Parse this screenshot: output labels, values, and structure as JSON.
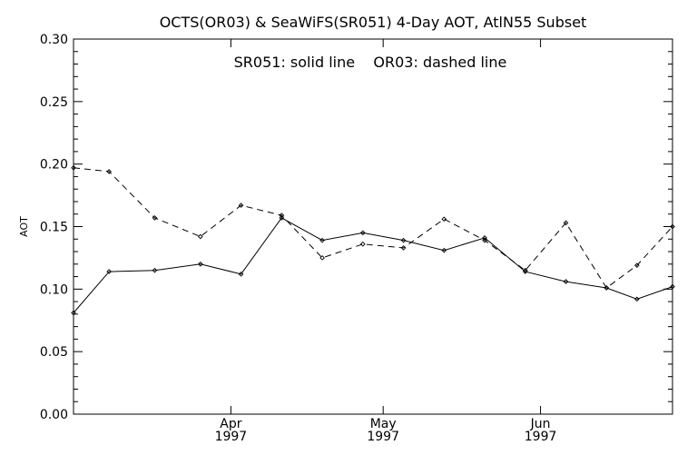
{
  "chart_data": {
    "type": "line",
    "title": "OCTS(OR03) & SeaWiFS(SR051) 4-Day AOT, AtlN55 Subset",
    "annotation": "SR051: solid line    OR03: dashed line",
    "xlabel": "",
    "ylabel": "AOT",
    "ylim": [
      0.0,
      0.3
    ],
    "yticks": [
      0.0,
      0.05,
      0.1,
      0.15,
      0.2,
      0.25,
      0.3
    ],
    "ytick_labels": [
      "0.00",
      "0.05",
      "0.10",
      "0.15",
      "0.20",
      "0.25",
      "0.30"
    ],
    "xlim": [
      "1997-03-01",
      "1997-06-27"
    ],
    "xticks": [
      {
        "date": "1997-04-01",
        "month": "Apr",
        "year": "1997"
      },
      {
        "date": "1997-05-01",
        "month": "May",
        "year": "1997"
      },
      {
        "date": "1997-06-01",
        "month": "Jun",
        "year": "1997"
      }
    ],
    "x": [
      "1997-03-01",
      "1997-03-08",
      "1997-03-17",
      "1997-03-26",
      "1997-04-03",
      "1997-04-11",
      "1997-04-19",
      "1997-04-27",
      "1997-05-05",
      "1997-05-13",
      "1997-05-21",
      "1997-05-29",
      "1997-06-06",
      "1997-06-14",
      "1997-06-20",
      "1997-06-27"
    ],
    "series": [
      {
        "name": "SR051",
        "line_style": "solid",
        "values": [
          0.081,
          0.114,
          0.115,
          0.12,
          0.112,
          0.157,
          0.139,
          0.145,
          0.139,
          0.131,
          0.141,
          0.114,
          0.106,
          0.101,
          0.092,
          0.102
        ]
      },
      {
        "name": "OR03",
        "line_style": "dashed",
        "values": [
          0.197,
          0.194,
          0.157,
          0.142,
          0.167,
          0.159,
          0.125,
          0.136,
          0.133,
          0.156,
          0.139,
          0.115,
          0.153,
          0.101,
          0.119,
          0.15
        ]
      }
    ],
    "grid": false,
    "colors": {
      "line": "#000000",
      "axes": "#000000",
      "background": "#ffffff"
    }
  }
}
